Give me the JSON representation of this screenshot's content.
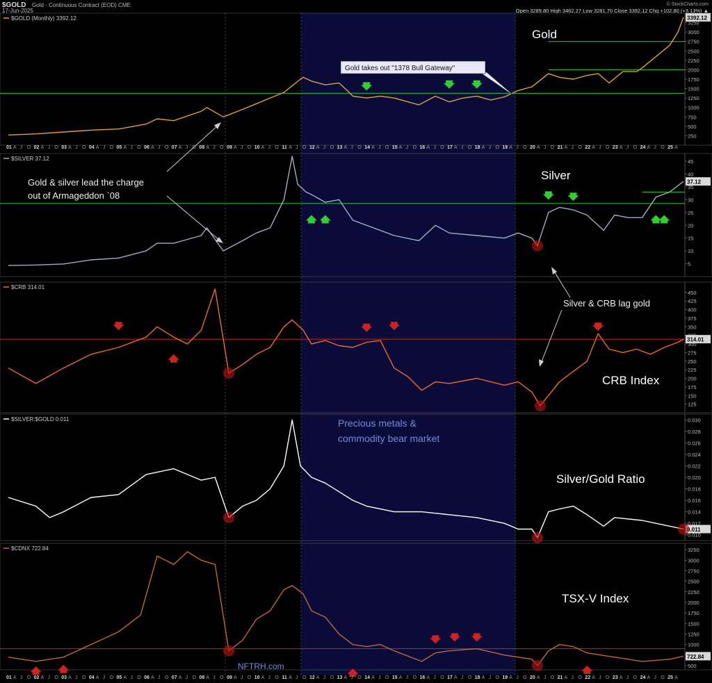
{
  "header": {
    "symbol": "$GOLD",
    "description": "Gold - Continuous Contract (EOD) CME",
    "date": "17-Jun-2025",
    "credit": "© StockCharts.com",
    "quote_line": "Open 3289.80  High 3462.27  Low 3281.70  Close 3392.12  Chg +102.80 (+3.13%) ▲"
  },
  "shading_label": "Precious metals & commodity bear market",
  "shading_label_lines": [
    "Precious metals &",
    "commodity bear market"
  ],
  "x_axis_labels": [
    "01",
    "A",
    "J",
    "O",
    "02",
    "A",
    "J",
    "O",
    "03",
    "A",
    "J",
    "O",
    "04",
    "A",
    "J",
    "O",
    "05",
    "A",
    "J",
    "O",
    "06",
    "A",
    "J",
    "O",
    "07",
    "A",
    "J",
    "O",
    "08",
    "A",
    "J",
    "O",
    "09",
    "A",
    "J",
    "O",
    "10",
    "A",
    "J",
    "O",
    "11",
    "A",
    "J",
    "O",
    "12",
    "A",
    "J",
    "O",
    "13",
    "A",
    "J",
    "O",
    "14",
    "A",
    "J",
    "O",
    "15",
    "A",
    "J",
    "O",
    "16",
    "A",
    "J",
    "O",
    "17",
    "A",
    "J",
    "O",
    "18",
    "A",
    "J",
    "O",
    "19",
    "A",
    "J",
    "O",
    "20",
    "A",
    "J",
    "O",
    "21",
    "A",
    "J",
    "O",
    "22",
    "A",
    "J",
    "O",
    "23",
    "A",
    "J",
    "O",
    "24",
    "A",
    "J",
    "O",
    "25",
    "A"
  ],
  "footer_credit": "NFTRH.com",
  "colors": {
    "gold": "#e0a040",
    "silver": "#a0aec0",
    "crb": "#f06a28",
    "ratio": "#ffffff",
    "cdnx": "#c0683a",
    "support": "#33cc33",
    "red": "#cc2222",
    "shade": "#0b0b3a",
    "bear_text": "#6f8ce0"
  },
  "chart_data": [
    {
      "type": "line",
      "legend": "$GOLD (Monthly) 3392.12",
      "title": "Gold",
      "last_value": "3392.12",
      "ylim": [
        0,
        3500
      ],
      "y_ticks": [
        250,
        500,
        750,
        1000,
        1250,
        1500,
        1750,
        2000,
        2250,
        2500,
        2750,
        3000,
        3250
      ],
      "support_lines": [
        1378,
        2000,
        2750
      ],
      "annotations": [
        "Gold takes out \"1378 Bull Gateway\""
      ],
      "x": [
        2001.0,
        2002.0,
        2003.0,
        2004.0,
        2005.0,
        2006.0,
        2006.4,
        2007.0,
        2008.0,
        2008.2,
        2008.8,
        2009.5,
        2010.0,
        2010.5,
        2011.0,
        2011.6,
        2011.7,
        2012.0,
        2012.5,
        2013.0,
        2013.3,
        2013.5,
        2014.0,
        2014.5,
        2015.0,
        2015.5,
        2015.9,
        2016.5,
        2017.0,
        2017.5,
        2018.0,
        2018.5,
        2019.0,
        2019.5,
        2020.0,
        2020.6,
        2021.0,
        2021.5,
        2022.0,
        2022.4,
        2022.8,
        2023.3,
        2023.8,
        2024.0,
        2024.5,
        2025.0,
        2025.3,
        2025.5
      ],
      "y": [
        270,
        300,
        350,
        400,
        430,
        560,
        700,
        650,
        900,
        1000,
        750,
        950,
        1100,
        1250,
        1400,
        1750,
        1800,
        1700,
        1600,
        1650,
        1450,
        1300,
        1250,
        1300,
        1250,
        1150,
        1070,
        1300,
        1150,
        1250,
        1300,
        1200,
        1280,
        1450,
        1550,
        1900,
        1800,
        1750,
        1850,
        1900,
        1650,
        1950,
        1950,
        2050,
        2350,
        2650,
        3000,
        3392
      ]
    },
    {
      "type": "line",
      "legend": "$SILVER 37.12",
      "title": "Silver",
      "last_value": "37.12",
      "ylim": [
        0,
        48
      ],
      "y_ticks": [
        5,
        10,
        15,
        20,
        25,
        30,
        35,
        40,
        45
      ],
      "support_lines": [
        28.5,
        33
      ],
      "annotations": [
        "Gold & silver lead the charge out of Armageddon `08",
        "Silver & CRB lag gold"
      ],
      "x": [
        2001.0,
        2002.0,
        2003.0,
        2004.0,
        2005.0,
        2006.0,
        2006.4,
        2007.0,
        2008.0,
        2008.2,
        2008.8,
        2009.5,
        2010.0,
        2010.5,
        2011.0,
        2011.3,
        2011.5,
        2011.8,
        2012.0,
        2012.5,
        2013.0,
        2013.5,
        2014.0,
        2015.0,
        2015.9,
        2016.5,
        2017.0,
        2018.0,
        2019.0,
        2019.5,
        2020.0,
        2020.2,
        2020.6,
        2021.0,
        2021.5,
        2022.0,
        2022.6,
        2023.0,
        2023.5,
        2024.0,
        2024.5,
        2025.0,
        2025.5
      ],
      "y": [
        4.3,
        4.5,
        4.9,
        6.5,
        7.2,
        10,
        13,
        13,
        16,
        19,
        10,
        14,
        17,
        19,
        30,
        47,
        36,
        33,
        32,
        29,
        30,
        22,
        20,
        16,
        14,
        20,
        17,
        16,
        15,
        17,
        15,
        12,
        25,
        27,
        26,
        24,
        18,
        24,
        23,
        23,
        31,
        33,
        37.12
      ]
    },
    {
      "type": "line",
      "legend": "$CRB 314.01",
      "title": "CRB Index",
      "last_value": "314.01",
      "ylim": [
        100,
        480
      ],
      "y_ticks": [
        125,
        150,
        175,
        200,
        225,
        250,
        275,
        300,
        325,
        350,
        375,
        400,
        425,
        450
      ],
      "support_lines": [
        314
      ],
      "x": [
        2001.0,
        2002.0,
        2003.0,
        2004.0,
        2005.0,
        2006.0,
        2006.4,
        2007.0,
        2007.5,
        2008.0,
        2008.5,
        2009.0,
        2009.5,
        2010.0,
        2010.5,
        2011.0,
        2011.3,
        2011.7,
        2012.0,
        2012.5,
        2013.0,
        2013.5,
        2014.0,
        2014.5,
        2015.0,
        2015.5,
        2016.0,
        2016.5,
        2017.0,
        2018.0,
        2019.0,
        2019.5,
        2020.0,
        2020.3,
        2020.6,
        2021.0,
        2021.5,
        2022.0,
        2022.4,
        2022.8,
        2023.3,
        2023.8,
        2024.3,
        2024.8,
        2025.3,
        2025.5
      ],
      "y": [
        230,
        185,
        230,
        270,
        290,
        320,
        350,
        320,
        300,
        340,
        460,
        215,
        240,
        270,
        290,
        350,
        370,
        340,
        300,
        310,
        295,
        290,
        305,
        310,
        230,
        205,
        165,
        190,
        185,
        200,
        180,
        190,
        160,
        120,
        150,
        190,
        220,
        250,
        330,
        285,
        275,
        285,
        270,
        290,
        305,
        314
      ]
    },
    {
      "type": "line",
      "legend": "$SILVER:$GOLD 0.011",
      "title": "Silver/Gold Ratio",
      "last_value": "0.011",
      "ylim": [
        0.009,
        0.031
      ],
      "y_ticks": [
        0.01,
        0.012,
        0.014,
        0.016,
        0.018,
        0.02,
        0.022,
        0.024,
        0.026,
        0.028,
        0.03
      ],
      "x": [
        2001.0,
        2002.0,
        2002.5,
        2003.0,
        2004.0,
        2005.0,
        2006.0,
        2007.0,
        2008.0,
        2008.5,
        2009.0,
        2009.5,
        2010.0,
        2010.5,
        2011.0,
        2011.3,
        2011.6,
        2012.0,
        2012.5,
        2013.0,
        2013.5,
        2014.0,
        2015.0,
        2016.0,
        2017.0,
        2018.0,
        2019.0,
        2019.5,
        2020.0,
        2020.2,
        2020.6,
        2021.0,
        2021.5,
        2022.0,
        2022.6,
        2023.0,
        2024.0,
        2024.5,
        2025.0,
        2025.5
      ],
      "y": [
        0.0165,
        0.015,
        0.013,
        0.014,
        0.0165,
        0.017,
        0.0205,
        0.0215,
        0.0195,
        0.02,
        0.013,
        0.015,
        0.016,
        0.018,
        0.022,
        0.03,
        0.022,
        0.02,
        0.019,
        0.0175,
        0.016,
        0.015,
        0.014,
        0.014,
        0.0135,
        0.013,
        0.012,
        0.011,
        0.011,
        0.0095,
        0.014,
        0.0145,
        0.015,
        0.0135,
        0.0115,
        0.013,
        0.0125,
        0.012,
        0.0115,
        0.011
      ]
    },
    {
      "type": "line",
      "legend": "$CDNX 722.84",
      "title": "TSX-V Index",
      "last_value": "722.84",
      "ylim": [
        400,
        3400
      ],
      "y_ticks": [
        500,
        750,
        1000,
        1250,
        1500,
        1750,
        2000,
        2250,
        2500,
        2750,
        3000,
        3250
      ],
      "support_lines": [
        900
      ],
      "x": [
        2001.0,
        2002.0,
        2003.0,
        2004.0,
        2005.0,
        2005.8,
        2006.4,
        2007.0,
        2007.5,
        2008.0,
        2008.5,
        2009.0,
        2009.5,
        2010.0,
        2010.5,
        2011.0,
        2011.3,
        2011.7,
        2012.0,
        2012.5,
        2013.0,
        2013.5,
        2014.0,
        2014.5,
        2015.0,
        2016.0,
        2016.5,
        2017.0,
        2018.0,
        2019.0,
        2019.5,
        2020.0,
        2020.2,
        2020.6,
        2021.0,
        2021.5,
        2022.0,
        2022.5,
        2023.0,
        2024.0,
        2025.0,
        2025.5
      ],
      "y": [
        700,
        600,
        700,
        1000,
        1300,
        1700,
        3100,
        2900,
        3200,
        3000,
        2900,
        850,
        1100,
        1600,
        1800,
        2300,
        2400,
        2200,
        1800,
        1650,
        1250,
        1000,
        950,
        1000,
        850,
        600,
        800,
        850,
        900,
        750,
        700,
        650,
        500,
        850,
        1000,
        950,
        800,
        750,
        700,
        600,
        650,
        722.84
      ]
    }
  ]
}
